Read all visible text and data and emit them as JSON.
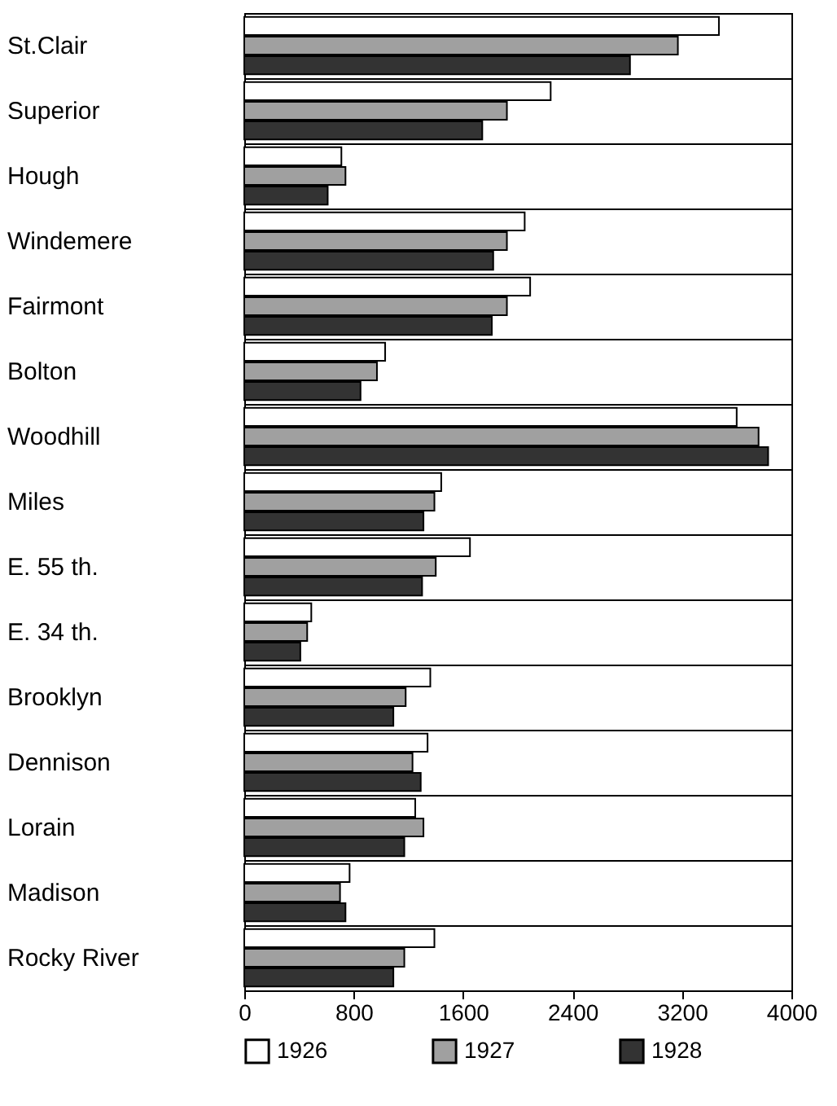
{
  "chart_data": {
    "type": "bar",
    "orientation": "horizontal",
    "categories": [
      "St.Clair",
      "Superior",
      "Hough",
      "Windemere",
      "Fairmont",
      "Bolton",
      "Woodhill",
      "Miles",
      "E. 55 th.",
      "E. 34 th.",
      "Brooklyn",
      "Dennison",
      "Lorain",
      "Madison",
      "Rocky River"
    ],
    "series": [
      {
        "name": "1926",
        "color": "#ffffff",
        "values": [
          3470,
          2240,
          710,
          2050,
          2090,
          1030,
          3600,
          1440,
          1650,
          490,
          1360,
          1340,
          1250,
          770,
          1390
        ]
      },
      {
        "name": "1927",
        "color": "#a0a0a0",
        "values": [
          3170,
          1920,
          740,
          1920,
          1920,
          970,
          3760,
          1390,
          1400,
          460,
          1180,
          1230,
          1310,
          700,
          1170
        ]
      },
      {
        "name": "1928",
        "color": "#333333",
        "values": [
          2820,
          1740,
          610,
          1820,
          1810,
          850,
          3830,
          1310,
          1300,
          410,
          1090,
          1290,
          1170,
          740,
          1090
        ]
      }
    ],
    "xlim": [
      0,
      4000
    ],
    "xticks": [
      0,
      800,
      1600,
      2400,
      3200,
      4000
    ],
    "grid": "y",
    "legend": "bottom"
  }
}
